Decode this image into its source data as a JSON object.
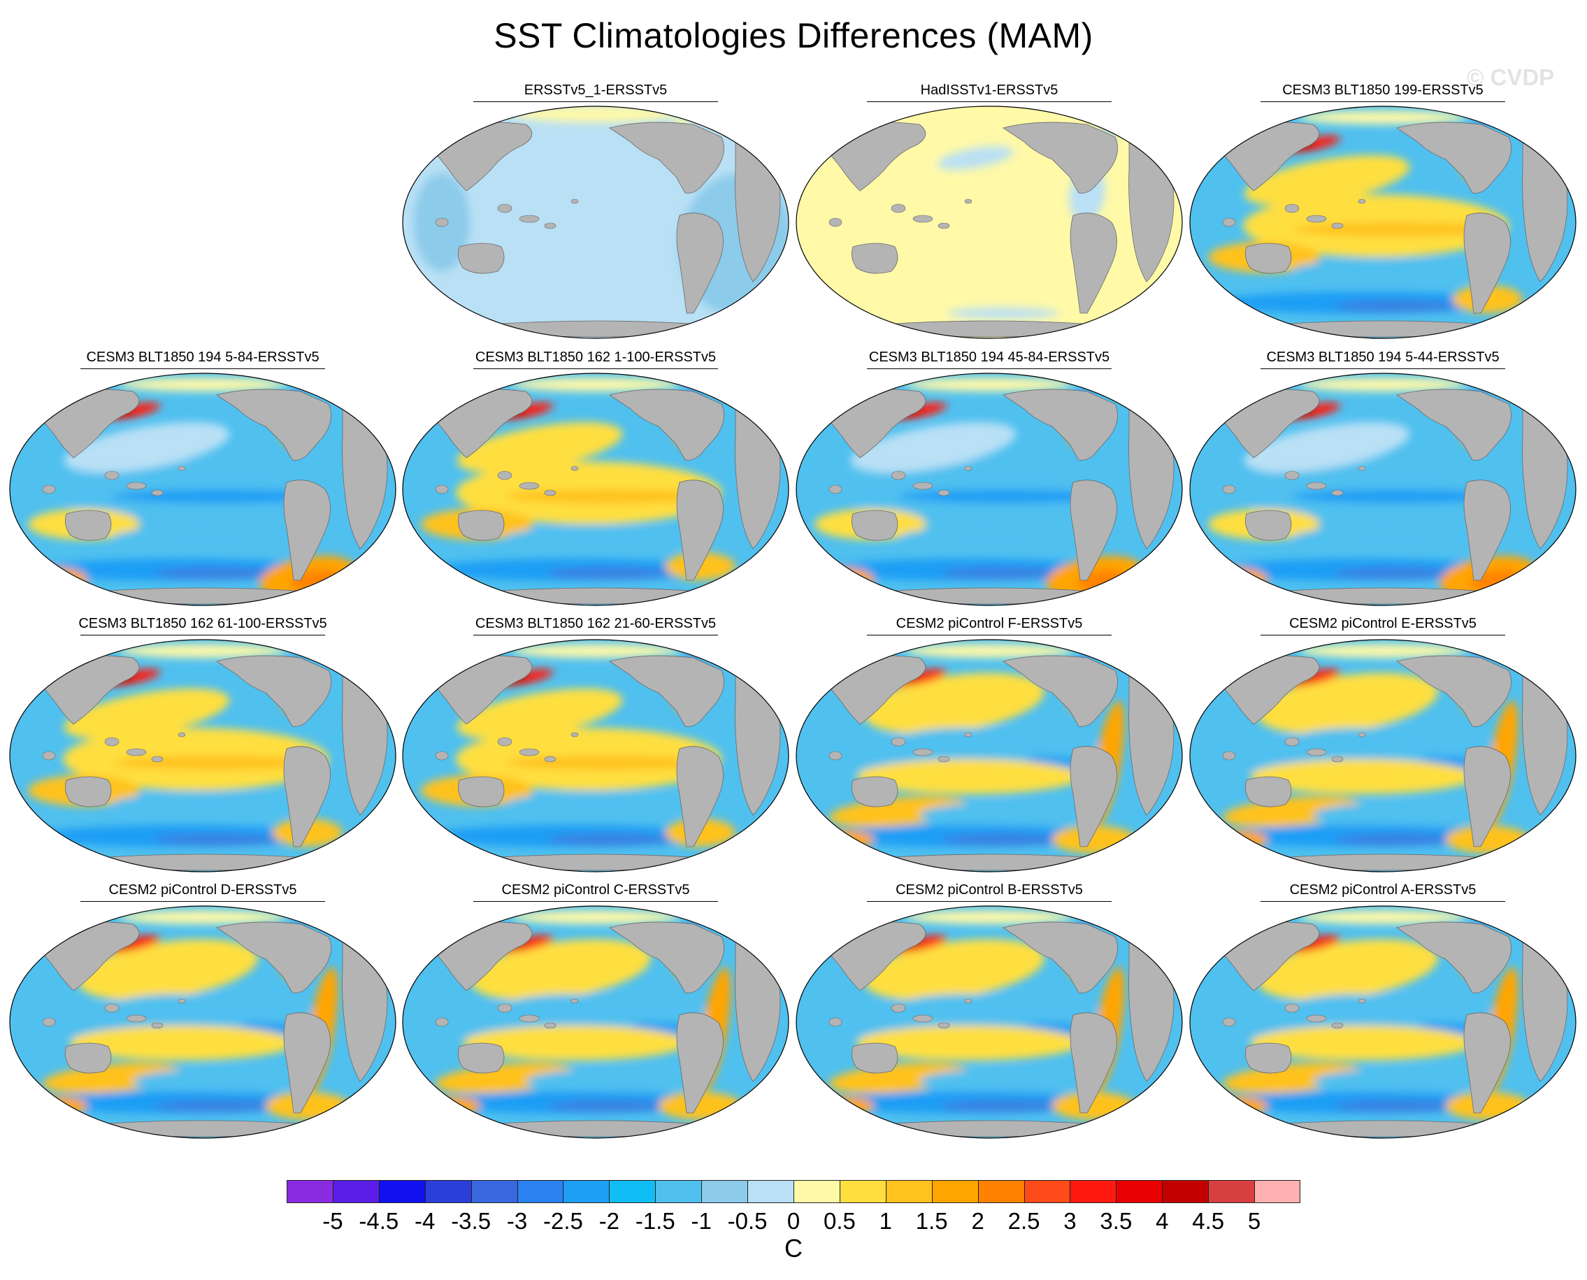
{
  "figure_title": "SST Climatologies Differences (MAM)",
  "watermark": "© CVDP",
  "chart_data": {
    "type": "heatmap",
    "title": "SST Climatologies Differences (MAM)",
    "panels": [
      {
        "title": "ERSSTv5_1-ERSSTv5",
        "style": "uniform-cool"
      },
      {
        "title": "HadISSTv1-ERSSTv5",
        "style": "uniform-warm"
      },
      {
        "title": "CESM3 BLT1850 199-ERSSTv5",
        "style": "mixed-warm-tropics"
      },
      {
        "title": "CESM3 BLT1850 194 5-84-ERSSTv5",
        "style": "cool-tropics"
      },
      {
        "title": "CESM3 BLT1850 162 1-100-ERSSTv5",
        "style": "warm-tropics"
      },
      {
        "title": "CESM3 BLT1850 194 45-84-ERSSTv5",
        "style": "cool-tropics"
      },
      {
        "title": "CESM3 BLT1850 194 5-44-ERSSTv5",
        "style": "cool-tropics"
      },
      {
        "title": "CESM3 BLT1850 162 61-100-ERSSTv5",
        "style": "warm-tropics"
      },
      {
        "title": "CESM3 BLT1850 162 21-60-ERSSTv5",
        "style": "warm-tropics"
      },
      {
        "title": "CESM2 piControl F-ERSSTv5",
        "style": "cesm2"
      },
      {
        "title": "CESM2 piControl E-ERSSTv5",
        "style": "cesm2"
      },
      {
        "title": "CESM2 piControl D-ERSSTv5",
        "style": "cesm2"
      },
      {
        "title": "CESM2 piControl C-ERSSTv5",
        "style": "cesm2"
      },
      {
        "title": "CESM2 piControl B-ERSSTv5",
        "style": "cesm2"
      },
      {
        "title": "CESM2 piControl A-ERSSTv5",
        "style": "cesm2"
      }
    ],
    "colorbar": {
      "units": "C",
      "levels": [
        "-5",
        "-4.5",
        "-4",
        "-3.5",
        "-3",
        "-2.5",
        "-2",
        "-1.5",
        "-1",
        "-0.5",
        "0",
        "0.5",
        "1",
        "1.5",
        "2",
        "2.5",
        "3",
        "3.5",
        "4",
        "4.5",
        "5"
      ],
      "colors": [
        "#8a2be2",
        "#5a1ee6",
        "#1010f0",
        "#2a3ed8",
        "#3a68e0",
        "#2a82f0",
        "#1e9ef5",
        "#10bef5",
        "#50c0ef",
        "#8ccbea",
        "#b9e0f5",
        "#fff9a8",
        "#ffdf40",
        "#ffc21e",
        "#ffa500",
        "#ff8200",
        "#ff4a1a",
        "#ff1a10",
        "#e80000",
        "#c30000",
        "#d84040",
        "#ffb0b0"
      ]
    },
    "land_color": "#b4b4b4"
  }
}
